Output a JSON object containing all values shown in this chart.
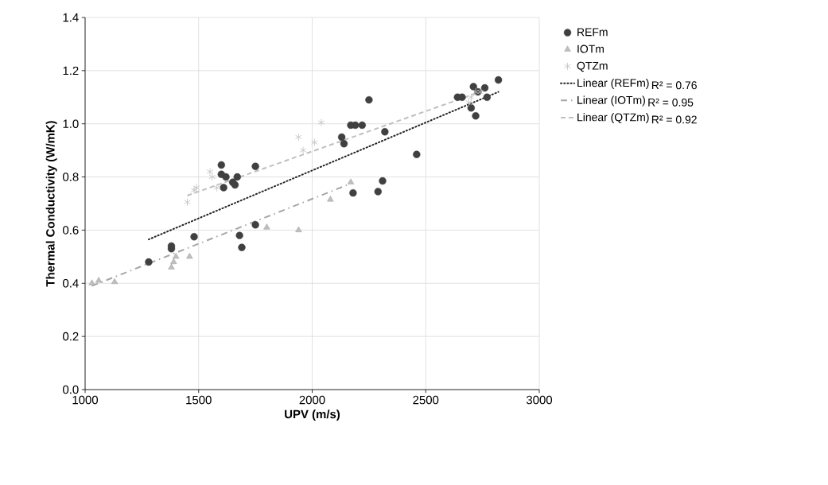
{
  "chart_data": {
    "type": "scatter",
    "xlabel": "UPV (m/s)",
    "ylabel": "Thermal Conductivity (W/mK)",
    "xlim": [
      1000,
      3000
    ],
    "xticks": [
      1000,
      1500,
      2000,
      2500,
      3000
    ],
    "ylim": [
      0,
      1.4
    ],
    "yticks": [
      {
        "value": 0,
        "label": "0.0"
      },
      0.2,
      0.4,
      0.6,
      0.8,
      {
        "value": 1,
        "label": "1.0"
      },
      1.2,
      1.4
    ],
    "grid": true,
    "legend": "right",
    "annotations": [
      "R² = 0.76",
      "R² = 0.95",
      "R² = 0.92"
    ],
    "series": [
      {
        "name": "REFm",
        "color": "#404040",
        "marker": "circle",
        "x": [
          1280,
          1380,
          1380,
          1480,
          1600,
          1600,
          1610,
          1620,
          1650,
          1660,
          1670,
          1680,
          1690,
          1750,
          1750,
          2130,
          2140,
          2170,
          2190,
          2220,
          2250,
          2180,
          2290,
          2310,
          2320,
          2460,
          2640,
          2660,
          2700,
          2710,
          2720,
          2730,
          2760,
          2770,
          2820
        ],
        "values": [
          0.48,
          0.53,
          0.54,
          0.575,
          0.81,
          0.845,
          0.76,
          0.8,
          0.78,
          0.77,
          0.8,
          0.58,
          0.535,
          0.84,
          0.62,
          0.95,
          0.925,
          0.995,
          0.995,
          0.995,
          1.09,
          0.74,
          0.745,
          0.785,
          0.97,
          0.885,
          1.1,
          1.1,
          1.06,
          1.14,
          1.03,
          1.12,
          1.135,
          1.1,
          1.165
        ]
      },
      {
        "name": "IOTm",
        "color": "#bfbfbf",
        "marker": "triangle",
        "x": [
          1030,
          1060,
          1130,
          1380,
          1390,
          1400,
          1460,
          1800,
          1940,
          2080,
          2170
        ],
        "values": [
          0.4,
          0.41,
          0.405,
          0.46,
          0.48,
          0.5,
          0.5,
          0.61,
          0.6,
          0.715,
          0.78
        ]
      },
      {
        "name": "QTZm",
        "color": "#bfbfbf",
        "marker": "cross",
        "x": [
          1450,
          1480,
          1490,
          1550,
          1560,
          1580,
          1940,
          1960,
          2010,
          2040,
          2690,
          2700,
          2720,
          2740
        ],
        "values": [
          0.705,
          0.75,
          0.76,
          0.82,
          0.8,
          0.76,
          0.95,
          0.9,
          0.93,
          1.005,
          1.08,
          1.1,
          1.12,
          1.12
        ]
      },
      {
        "name": "Linear (REFm)",
        "type": "line",
        "color": "#262626",
        "line_style": "dotted",
        "x": [
          1280,
          2820
        ],
        "values": [
          0.565,
          1.12
        ]
      },
      {
        "name": "Linear (IOTm)",
        "type": "line",
        "color": "#a6a6a6",
        "line_style": "dashdot",
        "x": [
          1030,
          2170
        ],
        "values": [
          0.39,
          0.775
        ]
      },
      {
        "name": "Linear (QTZm)",
        "type": "line",
        "color": "#bfbfbf",
        "line_style": "dashed",
        "x": [
          1450,
          2740
        ],
        "values": [
          0.73,
          1.12
        ]
      }
    ]
  }
}
